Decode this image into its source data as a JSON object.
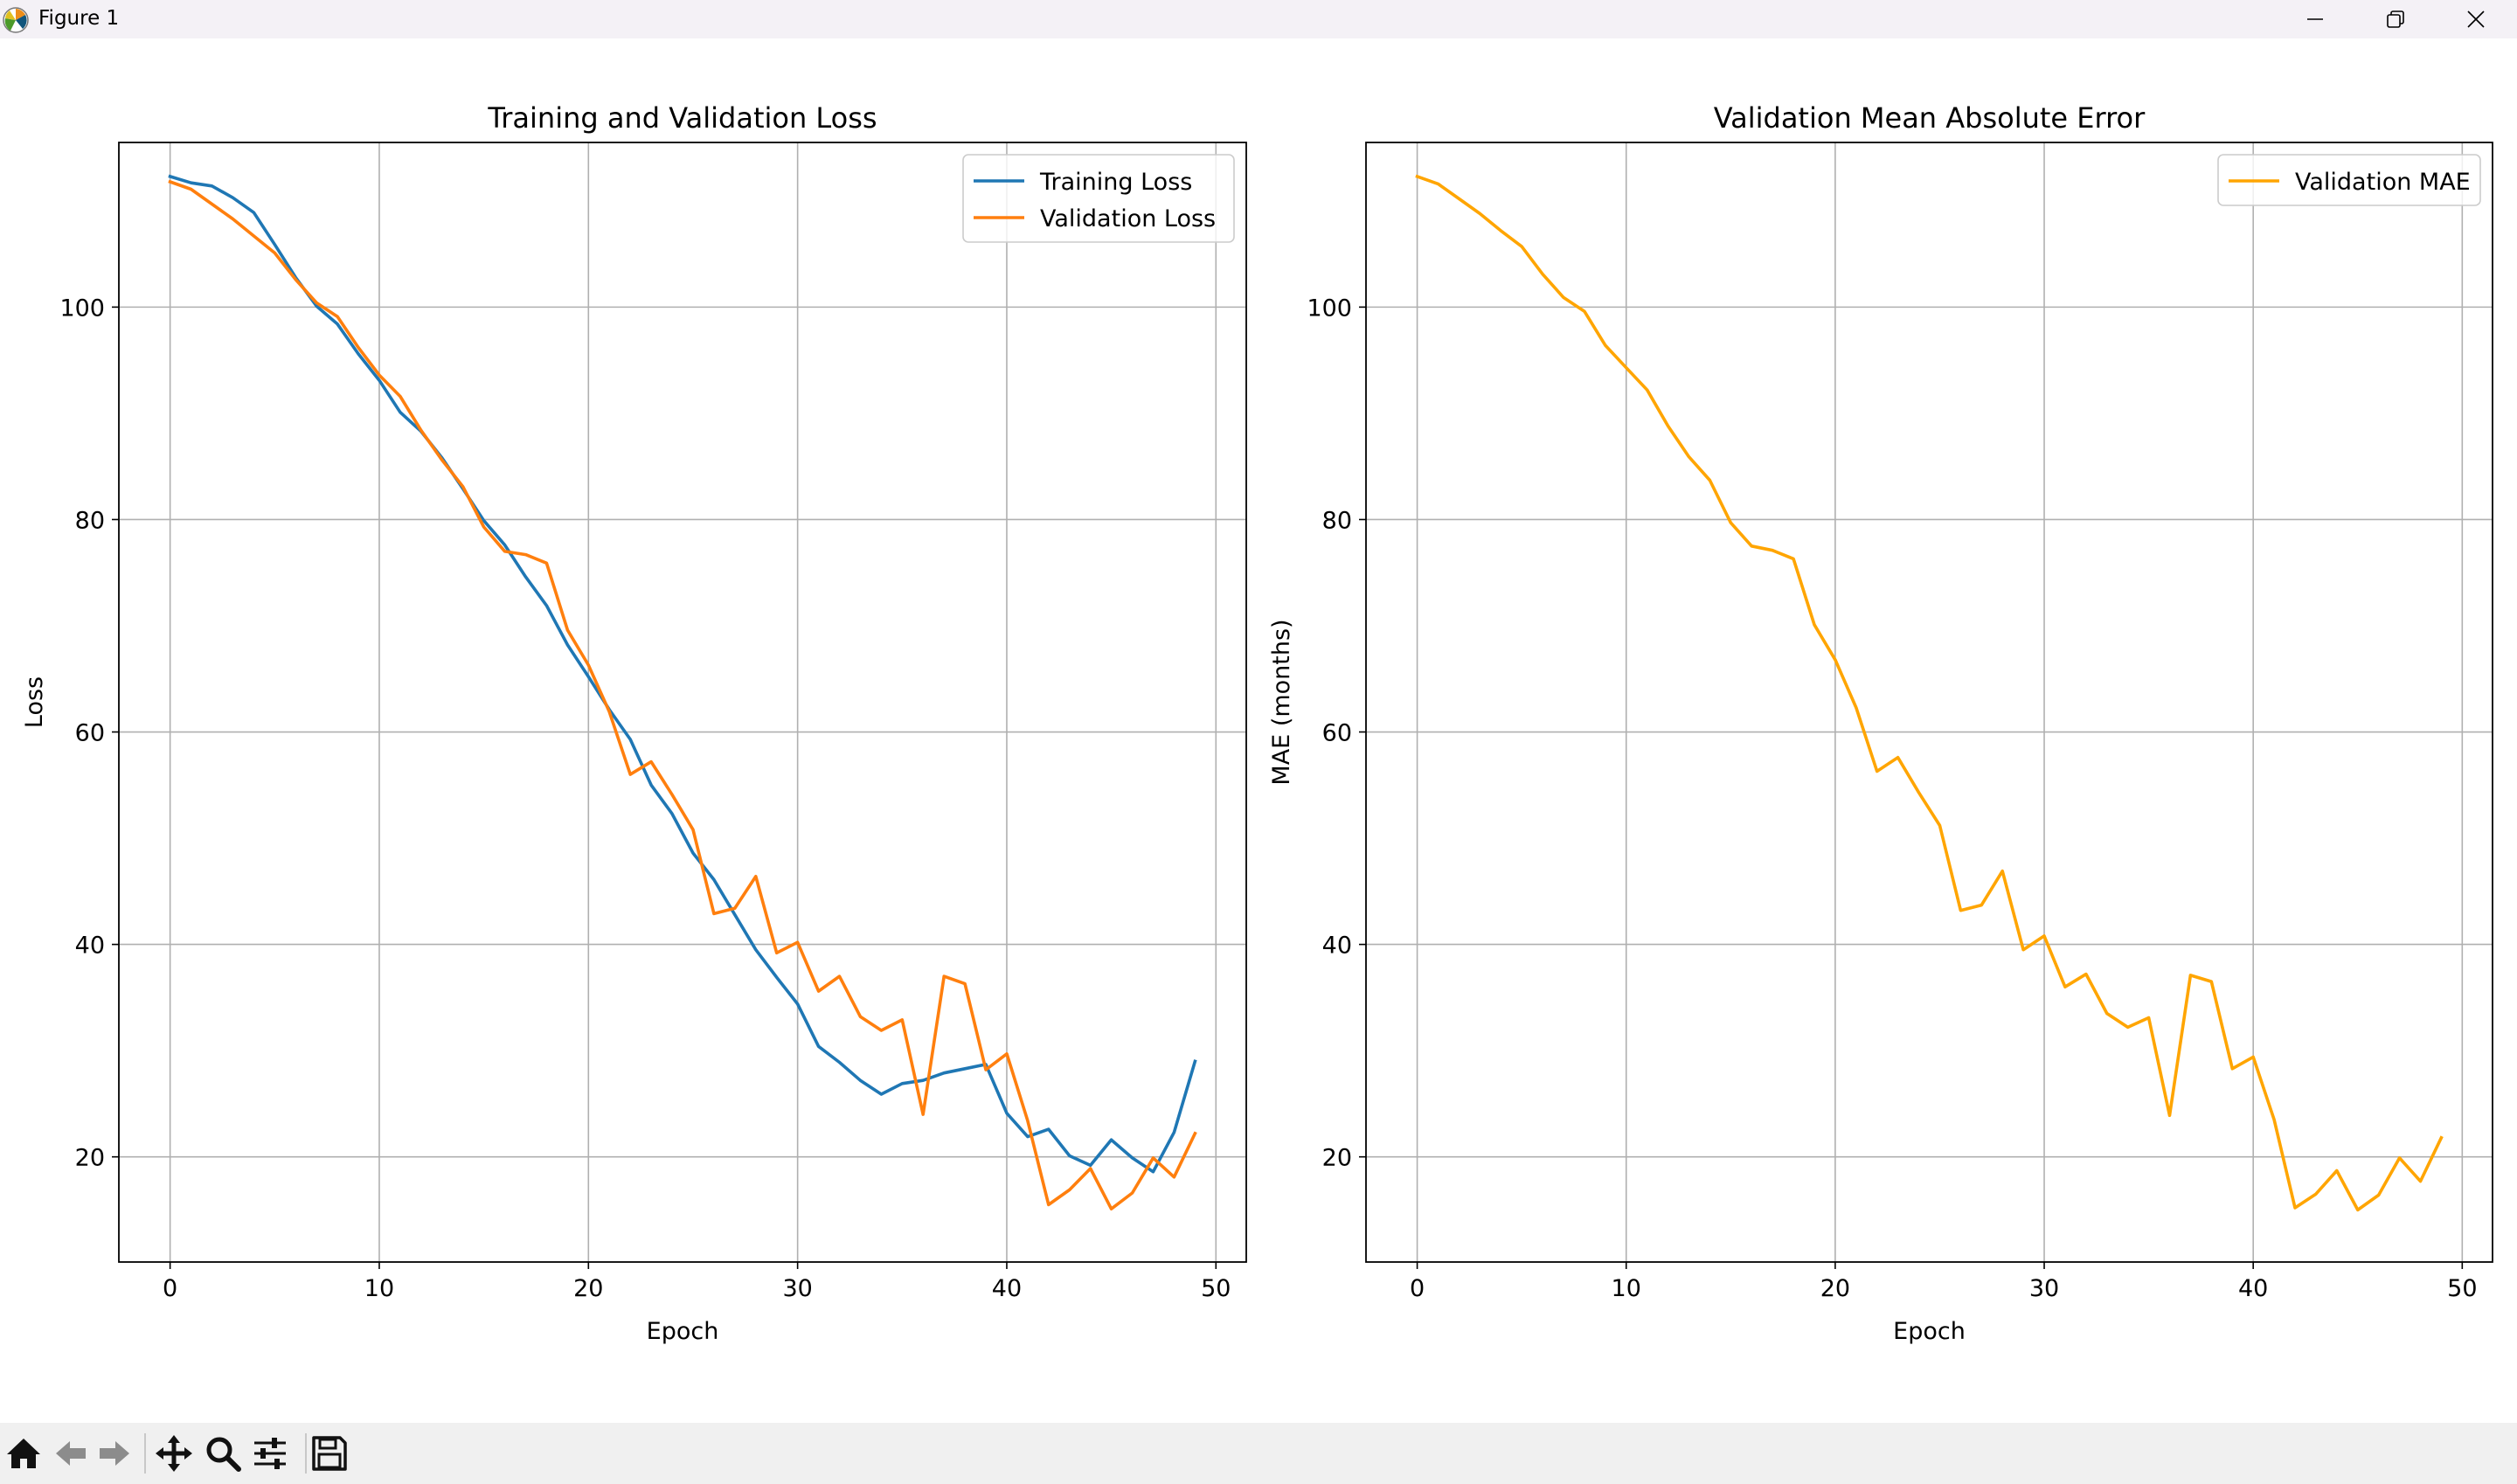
{
  "window": {
    "title": "Figure 1",
    "icons": [
      "matplotlib-logo-icon",
      "minimize-icon",
      "maximize-icon",
      "close-icon"
    ]
  },
  "toolbar": {
    "icons": [
      "home-icon",
      "back-arrow-icon",
      "forward-arrow-icon",
      "pan-move-icon",
      "zoom-magnifier-icon",
      "configure-subplots-icon",
      "save-floppy-icon"
    ]
  },
  "chart_data": [
    {
      "type": "line",
      "title": "Training and Validation Loss",
      "xlabel": "Epoch",
      "ylabel": "Loss",
      "xlim": [
        -2.45,
        51.45
      ],
      "ylim": [
        10.1,
        115.5
      ],
      "xticks": [
        0,
        10,
        20,
        30,
        40,
        50
      ],
      "yticks": [
        20,
        40,
        60,
        80,
        100
      ],
      "grid": true,
      "legend": "top-right",
      "x": [
        0,
        1,
        2,
        3,
        4,
        5,
        6,
        7,
        8,
        9,
        10,
        11,
        12,
        13,
        14,
        15,
        16,
        17,
        18,
        19,
        20,
        21,
        22,
        23,
        24,
        25,
        26,
        27,
        28,
        29,
        30,
        31,
        32,
        33,
        34,
        35,
        36,
        37,
        38,
        39,
        40,
        41,
        42,
        43,
        44,
        45,
        46,
        47,
        48,
        49
      ],
      "series": [
        {
          "name": "Training Loss",
          "color": "#1f77b4",
          "values": [
            112.3,
            111.7,
            111.4,
            110.3,
            108.9,
            105.9,
            102.8,
            100.1,
            98.4,
            95.6,
            93.1,
            90.1,
            88.3,
            85.8,
            82.9,
            79.9,
            77.6,
            74.6,
            71.9,
            68.2,
            65.2,
            62.1,
            59.3,
            55.0,
            52.3,
            48.6,
            46.1,
            42.8,
            39.5,
            36.9,
            34.4,
            30.4,
            28.9,
            27.2,
            25.9,
            26.9,
            27.2,
            27.9,
            28.3,
            28.7,
            24.1,
            21.9,
            22.6,
            20.1,
            19.2,
            21.6,
            19.9,
            18.6,
            22.3,
            29.0
          ]
        },
        {
          "name": "Validation Loss",
          "color": "#ff7f0e",
          "values": [
            111.8,
            111.1,
            109.7,
            108.3,
            106.7,
            105.1,
            102.6,
            100.4,
            99.1,
            96.2,
            93.6,
            91.6,
            88.4,
            85.6,
            83.1,
            79.3,
            77.0,
            76.7,
            75.9,
            69.6,
            66.3,
            61.9,
            56.0,
            57.2,
            54.1,
            50.8,
            42.9,
            43.4,
            46.4,
            39.2,
            40.2,
            35.6,
            37.0,
            33.2,
            31.9,
            32.9,
            24.0,
            37.0,
            36.3,
            28.2,
            29.7,
            23.4,
            15.5,
            16.9,
            18.9,
            15.1,
            16.6,
            19.9,
            18.1,
            22.2
          ]
        }
      ]
    },
    {
      "type": "line",
      "title": "Validation Mean Absolute Error",
      "xlabel": "Epoch",
      "ylabel": "MAE (months)",
      "xlim": [
        -2.45,
        51.45
      ],
      "ylim": [
        10.1,
        115.5
      ],
      "xticks": [
        0,
        10,
        20,
        30,
        40,
        50
      ],
      "yticks": [
        20,
        40,
        60,
        80,
        100
      ],
      "grid": true,
      "legend": "top-right",
      "x": [
        0,
        1,
        2,
        3,
        4,
        5,
        6,
        7,
        8,
        9,
        10,
        11,
        12,
        13,
        14,
        15,
        16,
        17,
        18,
        19,
        20,
        21,
        22,
        23,
        24,
        25,
        26,
        27,
        28,
        29,
        30,
        31,
        32,
        33,
        34,
        35,
        36,
        37,
        38,
        39,
        40,
        41,
        42,
        43,
        44,
        45,
        46,
        47,
        48,
        49
      ],
      "series": [
        {
          "name": "Validation MAE",
          "color": "#ffa500",
          "values": [
            112.3,
            111.6,
            110.2,
            108.8,
            107.2,
            105.7,
            103.1,
            100.9,
            99.6,
            96.4,
            94.3,
            92.2,
            88.8,
            85.9,
            83.7,
            79.7,
            77.5,
            77.1,
            76.3,
            70.1,
            66.8,
            62.3,
            56.3,
            57.6,
            54.3,
            51.2,
            43.2,
            43.7,
            46.9,
            39.5,
            40.8,
            36.0,
            37.2,
            33.5,
            32.2,
            33.1,
            23.9,
            37.1,
            36.5,
            28.3,
            29.4,
            23.5,
            15.2,
            16.5,
            18.7,
            15.0,
            16.4,
            19.9,
            17.7,
            21.8
          ]
        }
      ]
    }
  ]
}
